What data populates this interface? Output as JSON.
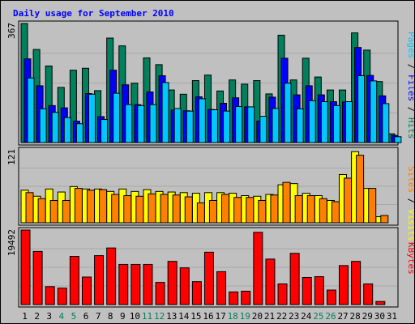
{
  "chart_data": {
    "type": "bar",
    "title": "Daily usage for September 2010",
    "days": [
      "1",
      "2",
      "3",
      "4",
      "5",
      "6",
      "7",
      "8",
      "9",
      "10",
      "11",
      "12",
      "13",
      "14",
      "15",
      "16",
      "17",
      "18",
      "19",
      "20",
      "21",
      "22",
      "23",
      "24",
      "25",
      "26",
      "27",
      "28",
      "29",
      "30",
      "31"
    ],
    "weekend_days": [
      "4",
      "5",
      "11",
      "12",
      "18",
      "19",
      "25",
      "26"
    ],
    "panels": [
      {
        "id": "hits-files-pages",
        "axis_max_label": "367",
        "ymax": 367,
        "right_labels": [
          "Pages",
          "Files",
          "Hits"
        ],
        "series": [
          {
            "name": "Hits",
            "values": [
              367,
              287,
              236,
              170,
              223,
              229,
              160,
              322,
              298,
              183,
              261,
              240,
              162,
              149,
              191,
              208,
              159,
              193,
              180,
              191,
              150,
              331,
              193,
              260,
              202,
              162,
              162,
              338,
              285,
              188,
              27
            ]
          },
          {
            "name": "Files",
            "values": [
              258,
              175,
              114,
              107,
              66,
              151,
              80,
              223,
              178,
              117,
              156,
              206,
              100,
              98,
              141,
              102,
              121,
              138,
              110,
              66,
              140,
              260,
              147,
              175,
              147,
              126,
              125,
              293,
              207,
              144,
              22
            ]
          },
          {
            "name": "Pages",
            "values": [
              199,
              104,
              93,
              77,
              58,
              149,
              71,
              152,
              117,
              114,
              117,
              185,
              105,
              97,
              135,
              101,
              97,
              111,
              110,
              81,
              105,
              183,
              104,
              129,
              126,
              114,
              126,
              206,
              190,
              120,
              18
            ]
          }
        ],
        "colors": {
          "Hits": "#00805c",
          "Files": "#0000ff",
          "Pages": "#00c8ff"
        }
      },
      {
        "id": "visits-sites",
        "axis_max_label": "121",
        "ymax": 121,
        "right_labels": [
          "Sites",
          "Visits"
        ],
        "series": [
          {
            "name": "Visits",
            "values": [
              54,
              44,
              56,
              51,
              60,
              56,
              56,
              52,
              56,
              52,
              55,
              52,
              51,
              50,
              49,
              50,
              50,
              49,
              45,
              44,
              47,
              63,
              65,
              49,
              45,
              37,
              80,
              118,
              57,
              10,
              0
            ]
          },
          {
            "name": "Sites",
            "values": [
              50,
              40,
              37,
              37,
              57,
              54,
              55,
              47,
              45,
              44,
              48,
              47,
              46,
              43,
              33,
              37,
              47,
              42,
              42,
              37,
              46,
              67,
              45,
              45,
              40,
              35,
              74,
              112,
              57,
              12,
              0
            ]
          }
        ],
        "colors": {
          "Visits": "#ffff00",
          "Sites": "#ff8000"
        }
      },
      {
        "id": "kbytes",
        "axis_max_label": "19492",
        "ymax": 19492,
        "right_labels": [
          "KBytes"
        ],
        "series": [
          {
            "name": "KBytes",
            "values": [
              19492,
              13900,
              4700,
              4300,
              12600,
              7200,
              12800,
              14800,
              10500,
              10500,
              10500,
              5800,
              11300,
              9600,
              6000,
              13700,
              8600,
              3300,
              3500,
              18900,
              11900,
              5400,
              13400,
              7100,
              7300,
              3800,
              10200,
              11300,
              5400,
              800,
              0
            ]
          }
        ],
        "colors": {
          "KBytes": "#ff0000"
        }
      }
    ]
  }
}
